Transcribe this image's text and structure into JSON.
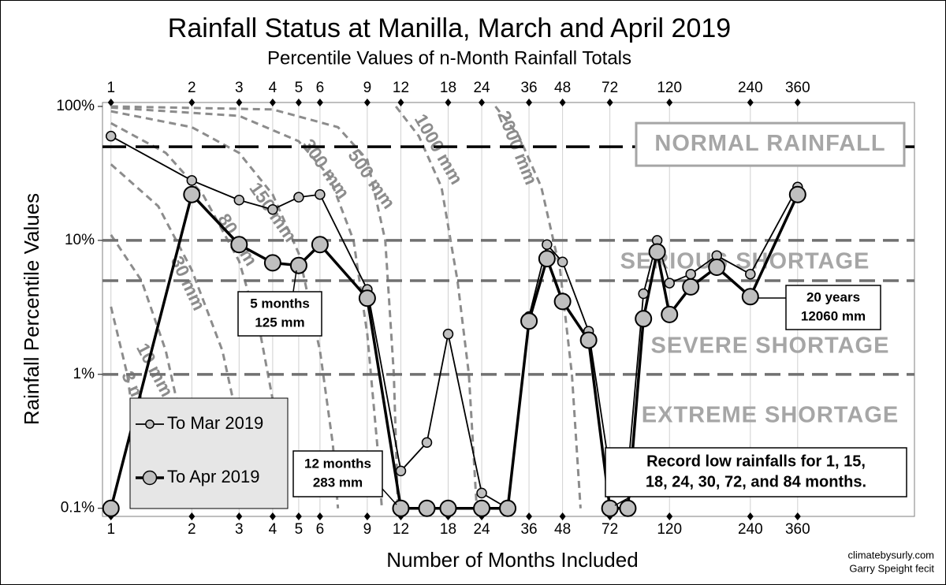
{
  "chart_data": {
    "type": "line",
    "title": "Rainfall Status at Manilla, March and April 2019",
    "subtitle": "Percentile Values of n-Month Rainfall Totals",
    "x_label": "Number of Months Included",
    "y_label": "Rainfall Percentile Values",
    "log_x": true,
    "log_y": true,
    "grid": true,
    "xlim": [
      0.93,
      980
    ],
    "ylim": [
      0.087,
      107
    ],
    "xticks": [
      1,
      2,
      3,
      4,
      5,
      6,
      9,
      12,
      18,
      24,
      36,
      48,
      72,
      120,
      240,
      360
    ],
    "yticks": [
      {
        "value": 0.1,
        "label": "0.1%"
      },
      {
        "value": 1,
        "label": "1%"
      },
      {
        "value": 10,
        "label": "10%"
      },
      {
        "value": 100,
        "label": "100%"
      }
    ],
    "x": [
      1,
      2,
      3,
      4,
      5,
      6,
      9,
      12,
      15,
      18,
      24,
      30,
      36,
      42,
      48,
      60,
      72,
      84,
      96,
      108,
      120,
      144,
      180,
      240,
      360
    ],
    "series": [
      {
        "name": "To Mar 2019",
        "color": "#c0c0c0",
        "values": [
          60,
          28,
          20,
          17,
          21,
          22,
          4.3,
          0.19,
          0.31,
          2.0,
          0.13,
          0.1,
          2.7,
          9.3,
          6.9,
          2.1,
          0.19,
          0.19,
          4.0,
          10,
          4.8,
          5.6,
          7.7,
          5.6,
          25
        ]
      },
      {
        "name": "To Apr 2019",
        "color": "#bfbfbf",
        "values": [
          0.1,
          22,
          9.3,
          6.8,
          6.5,
          9.3,
          3.7,
          0.1,
          0.1,
          0.1,
          0.1,
          0.1,
          2.5,
          7.3,
          3.5,
          1.8,
          0.1,
          0.1,
          2.6,
          8.2,
          2.8,
          4.5,
          6.3,
          3.8,
          22
        ]
      }
    ],
    "reference_lines": [
      {
        "value": 50,
        "color": "#000000"
      },
      {
        "value": 10,
        "color": "#707070"
      },
      {
        "value": 5,
        "color": "#707070"
      },
      {
        "value": 1,
        "color": "#707070"
      }
    ],
    "zone_labels": [
      "NORMAL RAINFALL",
      "SERIOUS SHORTAGE",
      "SEVERE SHORTAGE",
      "EXTREME SHORTAGE"
    ],
    "curve_color": "#8c8c8c",
    "curves": [
      {
        "name": "3 mm",
        "x": [
          1,
          1.15,
          1.25,
          1.3
        ],
        "y": [
          3.2,
          1,
          0.3,
          0.1
        ]
      },
      {
        "name": "10 mm",
        "x": [
          1,
          1.3,
          1.6,
          1.85,
          2
        ],
        "y": [
          11,
          5,
          1.5,
          0.4,
          0.1
        ]
      },
      {
        "name": "30 mm",
        "x": [
          1,
          1.5,
          2,
          2.6,
          3.0,
          3.3
        ],
        "y": [
          37,
          18,
          6,
          1.5,
          0.4,
          0.1
        ]
      },
      {
        "name": "80 mm",
        "x": [
          1,
          1.6,
          2.2,
          3,
          3.6,
          4.1,
          4.4
        ],
        "y": [
          75,
          45,
          22,
          7,
          2,
          0.5,
          0.1
        ]
      },
      {
        "name": "150 mm",
        "x": [
          1,
          2,
          3,
          4,
          5,
          6,
          6.7,
          7
        ],
        "y": [
          92,
          70,
          45,
          22,
          8,
          1.5,
          0.3,
          0.1
        ]
      },
      {
        "name": "300 mm",
        "x": [
          1,
          3,
          5,
          6.5,
          8,
          9,
          9.8,
          10.2
        ],
        "y": [
          98,
          85,
          55,
          30,
          10,
          2,
          0.3,
          0.1
        ]
      },
      {
        "name": "500 mm",
        "x": [
          1,
          4,
          7,
          9,
          10.5,
          11.3,
          11.7
        ],
        "y": [
          100,
          95,
          70,
          40,
          10,
          1,
          0.1
        ]
      },
      {
        "name": "1000 mm",
        "x": [
          11.5,
          14,
          17,
          19.5,
          21.5,
          23
        ],
        "y": [
          100,
          60,
          25,
          5,
          1,
          0.1
        ]
      },
      {
        "name": "2000 mm",
        "x": [
          27,
          33,
          40,
          47,
          52,
          56
        ],
        "y": [
          100,
          60,
          25,
          6,
          1,
          0.1
        ]
      }
    ],
    "annotations": [
      {
        "lines": [
          "5 months",
          "125 mm"
        ]
      },
      {
        "lines": [
          "12 months",
          "283 mm"
        ]
      },
      {
        "lines": [
          "20 years",
          "12060 mm"
        ]
      },
      {
        "lines": [
          "Record low rainfalls for 1, 15,",
          "18, 24, 30, 72, and 84 months."
        ]
      }
    ],
    "credits": [
      "climatebysurly.com",
      "Garry Speight fecit"
    ]
  }
}
